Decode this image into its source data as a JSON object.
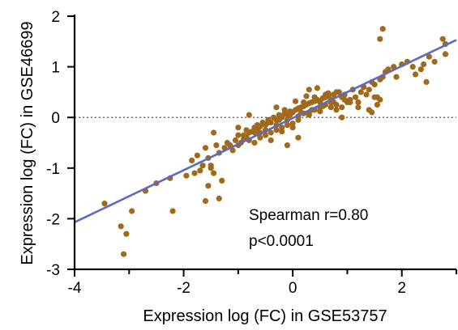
{
  "chart_data": {
    "type": "scatter",
    "title": "",
    "xlabel": "Expression log (FC) in GSE53757",
    "ylabel": "Expression log (FC) in GSE46699",
    "xlim": [
      -4,
      3
    ],
    "ylim": [
      -3,
      2
    ],
    "xticks": [
      -4,
      -2,
      0,
      2
    ],
    "yticks": [
      -3,
      -2,
      -1,
      0,
      1,
      2
    ],
    "grid": false,
    "reference_line": {
      "y": 0,
      "style": "dotted"
    },
    "regression_line": {
      "x": [
        -4.0,
        3.0
      ],
      "y": [
        -2.07,
        1.53
      ]
    },
    "annotations": [
      "Spearman r=0.80",
      "p<0.0001"
    ],
    "colors": {
      "points": "#A0691B",
      "regression": "#5B6BC4"
    },
    "points": {
      "x": [
        -3.45,
        -3.15,
        -3.05,
        -3.1,
        -2.95,
        -2.7,
        -2.5,
        -2.25,
        -2.2,
        -1.95,
        -1.85,
        -1.8,
        -1.7,
        -1.65,
        -1.6,
        -1.75,
        -1.55,
        -1.5,
        -1.5,
        -1.45,
        -1.4,
        -1.35,
        -1.3,
        -1.55,
        -1.25,
        -1.2,
        -1.15,
        -1.1,
        -1.05,
        -1.0,
        -1.45,
        -1.35,
        -1.6,
        -1.0,
        -0.95,
        -0.9,
        -0.85,
        -0.8,
        -0.75,
        -0.7,
        -0.65,
        -0.6,
        -0.55,
        -0.5,
        -0.45,
        -0.4,
        -0.35,
        -0.3,
        -0.25,
        -0.2,
        -0.15,
        -0.1,
        -0.05,
        0.0,
        0.05,
        0.1,
        0.15,
        0.2,
        0.25,
        0.3,
        0.35,
        0.4,
        0.45,
        0.5,
        0.55,
        0.6,
        0.65,
        0.7,
        0.75,
        0.8,
        -0.9,
        -0.8,
        -0.7,
        -0.6,
        -0.5,
        -0.4,
        -0.3,
        -0.2,
        -0.1,
        0.0,
        0.1,
        0.2,
        0.3,
        0.4,
        0.5,
        0.6,
        0.7,
        0.8,
        0.9,
        -0.85,
        -0.65,
        -0.45,
        -0.25,
        -0.05,
        0.15,
        0.35,
        0.55,
        0.75,
        0.95,
        -0.7,
        -0.5,
        -0.3,
        -0.1,
        0.1,
        0.3,
        0.5,
        0.7,
        -0.6,
        -0.2,
        0.2,
        0.6,
        -0.4,
        0.0,
        0.4,
        0.8,
        -1.0,
        -0.8,
        0.9,
        1.0,
        0.85,
        0.95,
        1.05,
        1.1,
        1.15,
        1.2,
        1.25,
        1.3,
        1.35,
        1.4,
        1.45,
        1.5,
        1.55,
        1.6,
        1.65,
        1.7,
        1.55,
        1.45,
        1.6,
        1.75,
        1.85,
        1.9,
        2.0,
        2.1,
        2.2,
        2.25,
        2.35,
        2.5,
        2.6,
        2.75,
        2.8,
        2.8,
        1.65,
        1.6,
        2.45,
        2.4,
        0.9,
        1.05,
        1.2,
        1.3,
        1.4,
        1.5,
        -0.3,
        -0.15,
        0.05,
        0.25,
        0.45,
        0.65,
        0.3,
        0.1,
        -0.1
      ],
      "y": [
        -1.7,
        -2.15,
        -2.3,
        -2.7,
        -1.85,
        -1.45,
        -1.3,
        -1.2,
        -1.85,
        -1.15,
        -0.85,
        -1.1,
        -1.05,
        -0.95,
        -0.6,
        -0.75,
        -0.8,
        -0.95,
        -1.0,
        -1.1,
        -0.55,
        -0.7,
        -1.25,
        -1.35,
        -0.6,
        -0.5,
        -0.55,
        -0.65,
        -0.45,
        -0.35,
        -0.3,
        -1.6,
        -1.65,
        -0.55,
        -0.5,
        -0.42,
        -0.38,
        -0.3,
        -0.28,
        -0.2,
        -0.22,
        -0.18,
        -0.1,
        -0.15,
        -0.05,
        -0.1,
        0.0,
        -0.05,
        0.05,
        0.0,
        0.08,
        0.05,
        0.12,
        0.1,
        0.15,
        0.18,
        0.2,
        0.22,
        0.25,
        0.28,
        0.3,
        0.32,
        0.35,
        0.3,
        0.38,
        0.4,
        0.42,
        0.35,
        0.45,
        0.5,
        -0.35,
        -0.45,
        -0.3,
        -0.4,
        -0.25,
        -0.3,
        -0.15,
        -0.2,
        -0.05,
        -0.12,
        0.02,
        0.08,
        0.1,
        0.15,
        0.2,
        0.25,
        0.3,
        0.25,
        0.4,
        -0.25,
        -0.15,
        -0.1,
        -0.05,
        0.05,
        0.1,
        0.15,
        0.22,
        0.3,
        0.35,
        -0.5,
        -0.35,
        -0.25,
        -0.15,
        -0.05,
        0.05,
        0.12,
        0.2,
        -0.3,
        -0.28,
        0.3,
        0.45,
        -0.45,
        -0.2,
        0.4,
        0.15,
        -0.2,
        0.05,
        0.2,
        0.3,
        0.5,
        0.45,
        0.35,
        0.55,
        0.4,
        0.3,
        0.5,
        0.6,
        0.45,
        0.55,
        0.7,
        0.65,
        0.4,
        0.75,
        0.8,
        0.9,
        0.25,
        0.1,
        0.35,
        0.95,
        1.0,
        0.8,
        1.05,
        1.1,
        1.0,
        0.85,
        0.95,
        1.2,
        1.1,
        1.55,
        1.45,
        1.25,
        1.75,
        1.55,
        0.7,
        1.05,
        0.0,
        0.3,
        0.2,
        0.6,
        0.15,
        0.4,
        0.2,
        0.15,
        0.32,
        0.42,
        0.58,
        0.48,
        0.55,
        -0.4,
        -0.55
      ]
    }
  }
}
